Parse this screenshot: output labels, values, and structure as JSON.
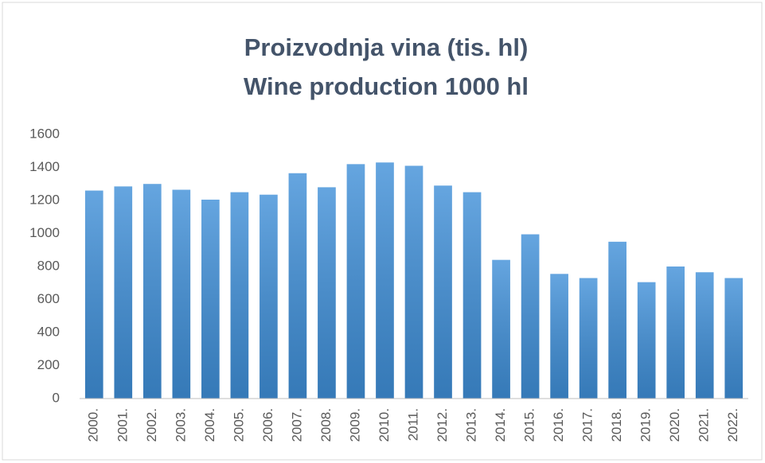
{
  "chart_data": {
    "type": "bar",
    "title": "Proizvodnja vina (tis. hl)",
    "subtitle": "Wine production 1000 hl",
    "categories": [
      "2000.",
      "2001.",
      "2002.",
      "2003.",
      "2004.",
      "2005.",
      "2006.",
      "2007.",
      "2008.",
      "2009.",
      "2010.",
      "2011.",
      "2012.",
      "2013.",
      "2014.",
      "2015.",
      "2016.",
      "2017.",
      "2018.",
      "2019.",
      "2020.",
      "2021.",
      "2022."
    ],
    "values": [
      1260,
      1285,
      1300,
      1265,
      1205,
      1250,
      1235,
      1365,
      1280,
      1420,
      1430,
      1410,
      1290,
      1250,
      840,
      995,
      755,
      730,
      950,
      705,
      800,
      765,
      730
    ],
    "color": "#3f8fd8",
    "ylim": [
      0,
      1600
    ],
    "yticks": [
      0,
      200,
      400,
      600,
      800,
      1000,
      1200,
      1400,
      1600
    ],
    "grid": false
  }
}
